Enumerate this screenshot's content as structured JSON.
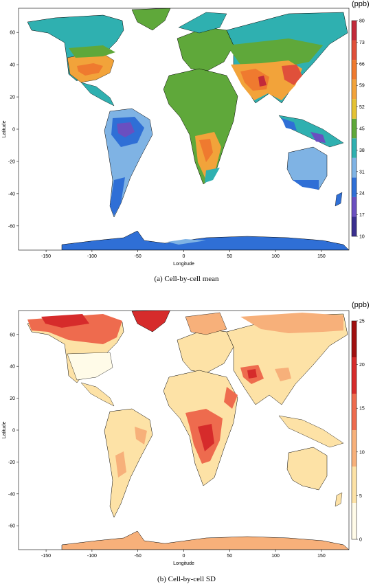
{
  "panels": [
    {
      "id": "a",
      "caption": "(a) Cell-by-cell mean",
      "unit": "(ppb)",
      "xlabel": "Longitude",
      "ylabel": "Latitude",
      "x_ticks": [
        -150,
        -100,
        -50,
        0,
        50,
        100,
        150
      ],
      "y_ticks": [
        60,
        40,
        20,
        0,
        -20,
        -40,
        -60
      ],
      "x_range": [
        -180,
        180
      ],
      "y_range": [
        -75,
        75
      ],
      "legend_breaks": [
        10,
        17,
        24,
        31,
        38,
        45,
        52,
        59,
        66,
        73,
        80
      ],
      "legend_colors": [
        "#3a2f8f",
        "#6a4fc0",
        "#2f6fd6",
        "#7fb3e4",
        "#2fb0b0",
        "#5fa83a",
        "#e4c233",
        "#f2a33a",
        "#ef7a2f",
        "#e0503a",
        "#c22a3a"
      ],
      "grid": "off"
    },
    {
      "id": "b",
      "caption": "(b) Cell-by-cell SD",
      "unit": "(ppb)",
      "xlabel": "Longitude",
      "ylabel": "Latitude",
      "x_ticks": [
        -150,
        -100,
        -50,
        0,
        50,
        100,
        150
      ],
      "y_ticks": [
        60,
        40,
        20,
        0,
        -20,
        -40,
        -60
      ],
      "x_range": [
        -180,
        180
      ],
      "y_range": [
        -75,
        75
      ],
      "legend_breaks": [
        0,
        5,
        10,
        15,
        20,
        25
      ],
      "legend_colors": [
        "#fffbe8",
        "#fde2a6",
        "#f7b07a",
        "#ee6b4e",
        "#d62b2b",
        "#a01010"
      ],
      "grid": "off"
    }
  ]
}
